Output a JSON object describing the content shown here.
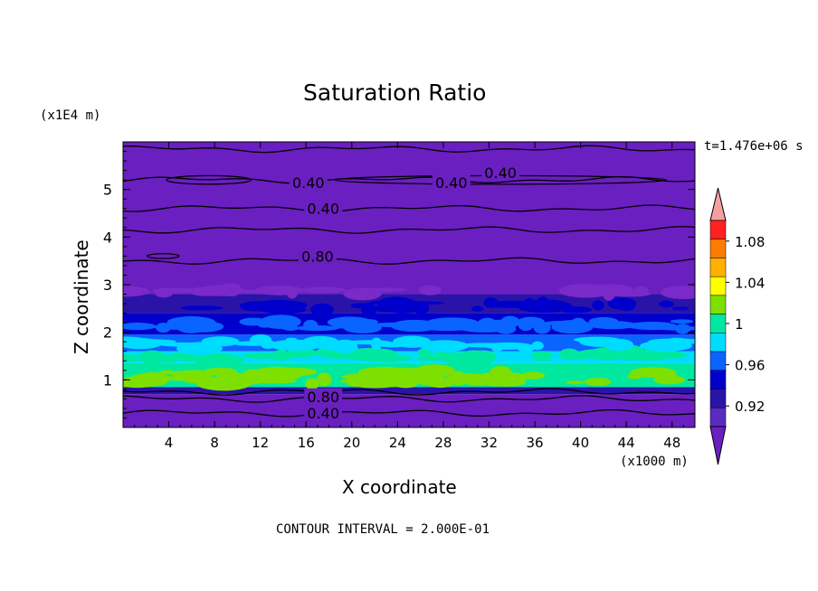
{
  "chart_data": {
    "type": "contour",
    "title": "Saturation Ratio",
    "time_label": "t=1.476e+06 s",
    "xlabel": "X coordinate",
    "ylabel": "Z coordinate",
    "x_units": "(x1000 m)",
    "y_units": "(x1E4 m)",
    "xlim": [
      0,
      50
    ],
    "ylim": [
      0,
      6
    ],
    "x_ticks": [
      "4",
      "8",
      "12",
      "16",
      "20",
      "24",
      "28",
      "32",
      "36",
      "40",
      "44",
      "48"
    ],
    "y_ticks": [
      "1",
      "2",
      "3",
      "4",
      "5"
    ],
    "footer": "CONTOUR INTERVAL = 2.000E-01",
    "colorbar": {
      "labels": [
        "0.92",
        "0.96",
        "1",
        "1.04",
        "1.08"
      ],
      "levels": [
        0.92,
        0.94,
        0.96,
        0.98,
        1.0,
        1.02,
        1.04,
        1.06,
        1.08,
        1.1
      ],
      "colors": [
        "#5a2bc0",
        "#2a14a8",
        "#0000cc",
        "#0a64ff",
        "#00dcff",
        "#00e8a0",
        "#7ee000",
        "#ffff00",
        "#ffb000",
        "#ff7a00",
        "#ff2020",
        "#f4a0a0"
      ],
      "under_color": "#6a1fc0",
      "over_color": "#f4a0a0"
    },
    "contour_labels": [
      {
        "text": "0.40",
        "x": 16.2,
        "z": 5.15
      },
      {
        "text": "0.40",
        "x": 28.7,
        "z": 5.15
      },
      {
        "text": "0.40",
        "x": 33.0,
        "z": 5.35
      },
      {
        "text": "0.40",
        "x": 17.5,
        "z": 4.6
      },
      {
        "text": "0.80",
        "x": 17.0,
        "z": 3.6
      },
      {
        "text": "0.80",
        "x": 17.5,
        "z": 0.65
      },
      {
        "text": "0.40",
        "x": 17.5,
        "z": 0.3
      }
    ],
    "bands": [
      {
        "z0": 0.0,
        "z1": 0.7,
        "color": "#6a1fc0"
      },
      {
        "z0": 0.7,
        "z1": 0.85,
        "color": "#2a14a8"
      },
      {
        "z0": 0.85,
        "z1": 1.35,
        "color": "#00e8a0"
      },
      {
        "z0": 1.35,
        "z1": 1.6,
        "color": "#00dcff"
      },
      {
        "z0": 1.6,
        "z1": 1.95,
        "color": "#0a64ff"
      },
      {
        "z0": 1.95,
        "z1": 2.4,
        "color": "#0000cc"
      },
      {
        "z0": 2.4,
        "z1": 2.8,
        "color": "#2a14a8"
      },
      {
        "z0": 2.8,
        "z1": 6.0,
        "color": "#6a1fc0"
      }
    ],
    "contour_lines_z": [
      0.3,
      0.6,
      0.75,
      3.5,
      4.15,
      4.6,
      5.2,
      5.85
    ]
  }
}
